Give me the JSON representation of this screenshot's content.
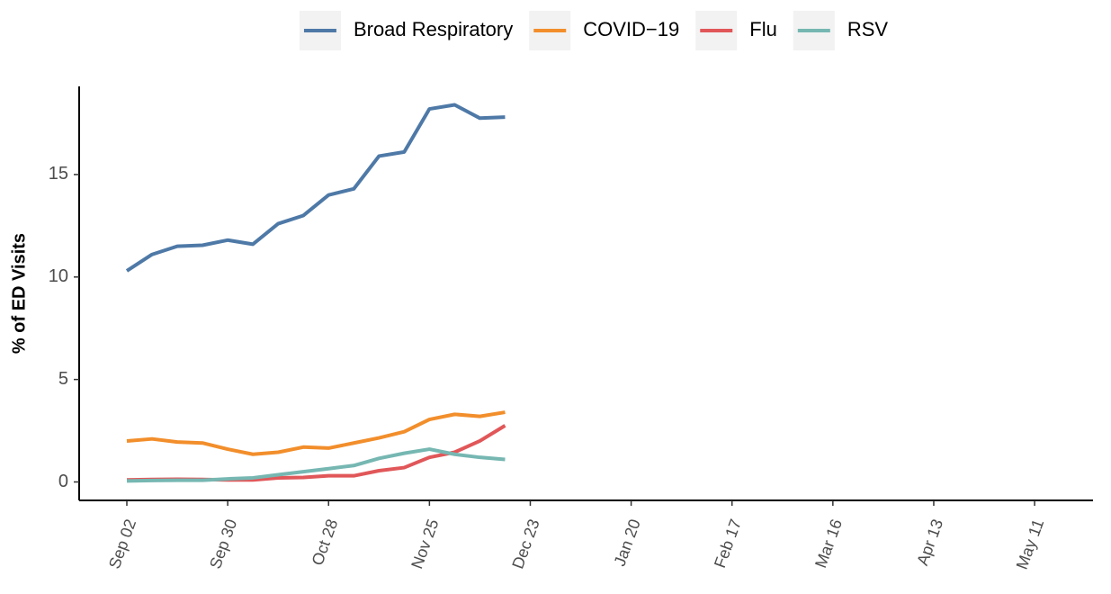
{
  "chart_data": {
    "type": "line",
    "y_label": "% of ED Visits",
    "categories": [
      "Sep 02",
      null,
      null,
      null,
      "Sep 30",
      null,
      null,
      null,
      "Oct 28",
      null,
      null,
      null,
      "Nov 25",
      null,
      null,
      null,
      "Dec 23",
      null,
      null,
      null,
      "Jan 20",
      null,
      null,
      null,
      "Feb 17",
      null,
      null,
      null,
      "Mar 16",
      null,
      null,
      null,
      "Apr 13",
      null,
      null,
      null,
      "May 11"
    ],
    "series": [
      {
        "name": "Broad Respiratory",
        "color": "#4e79a7",
        "values": [
          10.3,
          11.1,
          11.5,
          11.55,
          11.8,
          11.6,
          12.6,
          13.0,
          14.0,
          14.3,
          15.9,
          16.1,
          18.2,
          18.4,
          17.75,
          17.8,
          null,
          null,
          null,
          null,
          null,
          null,
          null,
          null,
          null,
          null,
          null,
          null,
          null,
          null,
          null,
          null,
          null,
          null,
          null,
          null,
          null
        ]
      },
      {
        "name": "COVID−19",
        "color": "#f28e2b",
        "values": [
          2.0,
          2.1,
          1.95,
          1.9,
          1.6,
          1.35,
          1.45,
          1.7,
          1.65,
          1.9,
          2.15,
          2.45,
          3.05,
          3.3,
          3.2,
          3.4,
          null,
          null,
          null,
          null,
          null,
          null,
          null,
          null,
          null,
          null,
          null,
          null,
          null,
          null,
          null,
          null,
          null,
          null,
          null,
          null,
          null
        ]
      },
      {
        "name": "Flu",
        "color": "#e15759",
        "values": [
          0.1,
          0.12,
          0.13,
          0.12,
          0.1,
          0.1,
          0.2,
          0.22,
          0.3,
          0.3,
          0.55,
          0.7,
          1.2,
          1.45,
          2.0,
          2.75,
          null,
          null,
          null,
          null,
          null,
          null,
          null,
          null,
          null,
          null,
          null,
          null,
          null,
          null,
          null,
          null,
          null,
          null,
          null,
          null,
          null
        ]
      },
      {
        "name": "RSV",
        "color": "#76b7b2",
        "values": [
          0.05,
          0.07,
          0.08,
          0.08,
          0.15,
          0.2,
          0.35,
          0.5,
          0.65,
          0.8,
          1.15,
          1.4,
          1.6,
          1.35,
          1.2,
          1.1,
          null,
          null,
          null,
          null,
          null,
          null,
          null,
          null,
          null,
          null,
          null,
          null,
          null,
          null,
          null,
          null,
          null,
          null,
          null,
          null,
          null
        ]
      }
    ],
    "ylim": [
      -0.9,
      19.3
    ],
    "yticks": [
      0,
      5,
      10,
      15
    ],
    "legend": "top",
    "grid": false
  }
}
